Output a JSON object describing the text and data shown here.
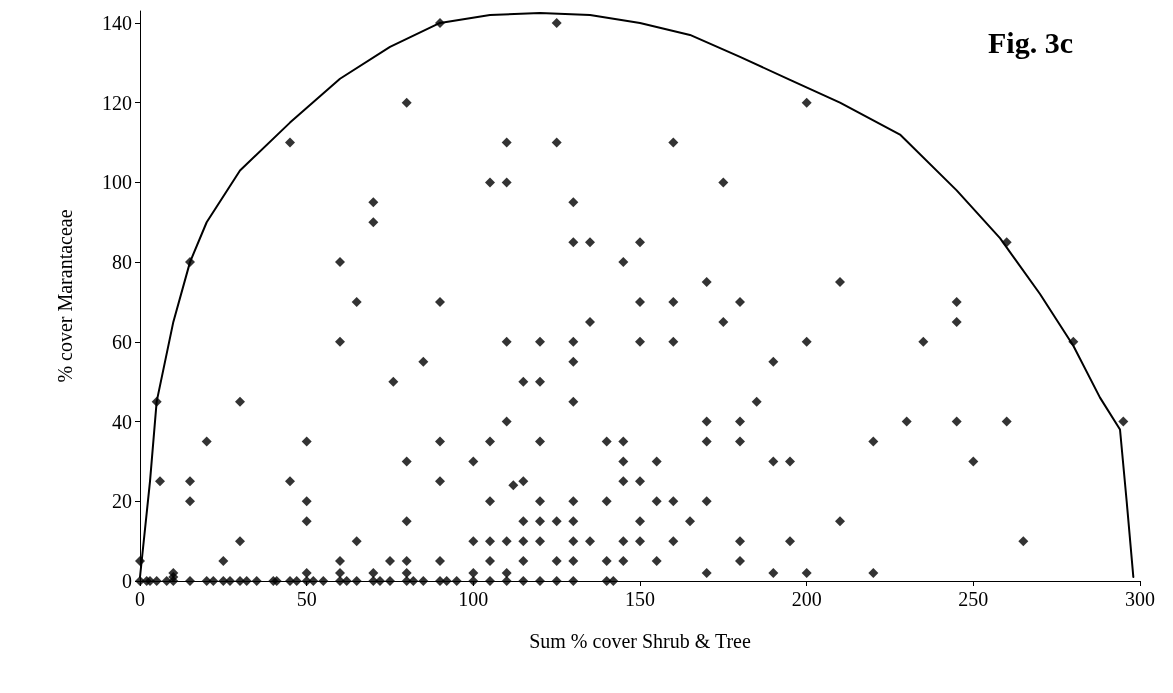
{
  "chart_data": {
    "type": "scatter",
    "title": "Fig. 3c",
    "xlabel": "Sum % cover Shrub & Tree",
    "ylabel": "% cover Marantaceae",
    "xlim": [
      0,
      300
    ],
    "xticks": [
      0,
      50,
      100,
      150,
      200,
      250,
      300
    ],
    "ylim": [
      0,
      143
    ],
    "yticks": [
      0,
      20,
      40,
      60,
      80,
      100,
      120,
      140
    ],
    "grid": false,
    "series": [
      {
        "color": "#000000",
        "marker": "diamond",
        "x": [
          0,
          0,
          2,
          3,
          5,
          8,
          10,
          10,
          10,
          15,
          20,
          22,
          25,
          27,
          30,
          32,
          35,
          40,
          41,
          45,
          47,
          50,
          52,
          55,
          60,
          62,
          65,
          70,
          72,
          75,
          80,
          82,
          85,
          90,
          92,
          95,
          100,
          105,
          110,
          115,
          120,
          125,
          130,
          140,
          142,
          5,
          6,
          15,
          15,
          15,
          20,
          25,
          30,
          30,
          45,
          45,
          50,
          50,
          50,
          50,
          60,
          60,
          60,
          60,
          65,
          65,
          70,
          70,
          70,
          75,
          76,
          80,
          80,
          80,
          80,
          80,
          85,
          90,
          90,
          90,
          90,
          90,
          100,
          100,
          100,
          105,
          105,
          105,
          105,
          105,
          110,
          110,
          110,
          110,
          110,
          110,
          112,
          115,
          115,
          115,
          115,
          115,
          120,
          120,
          120,
          120,
          120,
          120,
          125,
          125,
          125,
          125,
          130,
          130,
          130,
          130,
          130,
          130,
          130,
          130,
          130,
          135,
          135,
          135,
          140,
          140,
          140,
          145,
          145,
          145,
          145,
          145,
          145,
          150,
          150,
          150,
          150,
          150,
          150,
          155,
          155,
          155,
          160,
          160,
          160,
          160,
          160,
          165,
          170,
          170,
          170,
          170,
          170,
          175,
          175,
          180,
          180,
          180,
          180,
          180,
          185,
          190,
          190,
          190,
          195,
          195,
          200,
          200,
          200,
          210,
          210,
          220,
          220,
          230,
          235,
          245,
          245,
          245,
          250,
          260,
          260,
          265,
          280,
          295
        ],
        "values": [
          5,
          0,
          0,
          0,
          0,
          0,
          2,
          1,
          0,
          0,
          0,
          0,
          0,
          0,
          0,
          0,
          0,
          0,
          0,
          0,
          0,
          0,
          0,
          0,
          0,
          0,
          0,
          0,
          0,
          0,
          0,
          0,
          0,
          0,
          0,
          0,
          0,
          0,
          0,
          0,
          0,
          0,
          0,
          0,
          0,
          45,
          25,
          80,
          25,
          20,
          35,
          5,
          45,
          10,
          110,
          25,
          35,
          20,
          15,
          2,
          60,
          80,
          5,
          2,
          70,
          10,
          95,
          90,
          2,
          5,
          50,
          120,
          30,
          15,
          5,
          2,
          55,
          140,
          70,
          35,
          25,
          5,
          30,
          10,
          2,
          100,
          35,
          20,
          10,
          5,
          110,
          100,
          60,
          40,
          10,
          2,
          24,
          50,
          25,
          15,
          10,
          5,
          60,
          50,
          35,
          20,
          15,
          10,
          140,
          110,
          15,
          5,
          95,
          85,
          60,
          55,
          45,
          20,
          15,
          10,
          5,
          85,
          65,
          10,
          35,
          20,
          5,
          80,
          35,
          30,
          25,
          10,
          5,
          85,
          70,
          60,
          25,
          15,
          10,
          30,
          20,
          5,
          110,
          70,
          60,
          20,
          10,
          15,
          75,
          40,
          35,
          20,
          2,
          100,
          65,
          70,
          40,
          35,
          10,
          5,
          45,
          55,
          30,
          2,
          30,
          10,
          120,
          60,
          2,
          75,
          15,
          35,
          2,
          40,
          60,
          70,
          65,
          40,
          30,
          85,
          40,
          10,
          60,
          40
        ]
      },
      {
        "type": "line",
        "color": "#000000",
        "line_style": "solid",
        "marker": "none",
        "x": [
          0,
          3,
          5,
          10,
          15,
          20,
          30,
          45,
          60,
          75,
          90,
          105,
          120,
          135,
          150,
          165,
          180,
          195,
          210,
          228,
          245,
          258,
          270,
          280,
          288,
          294,
          296,
          298
        ],
        "values": [
          1,
          25,
          45,
          65,
          80,
          90,
          103,
          115,
          126,
          134,
          140,
          142,
          142.5,
          142,
          140,
          137,
          131.5,
          125.7,
          120,
          112,
          98,
          86,
          72,
          59,
          46,
          38,
          20,
          1
        ]
      }
    ]
  }
}
